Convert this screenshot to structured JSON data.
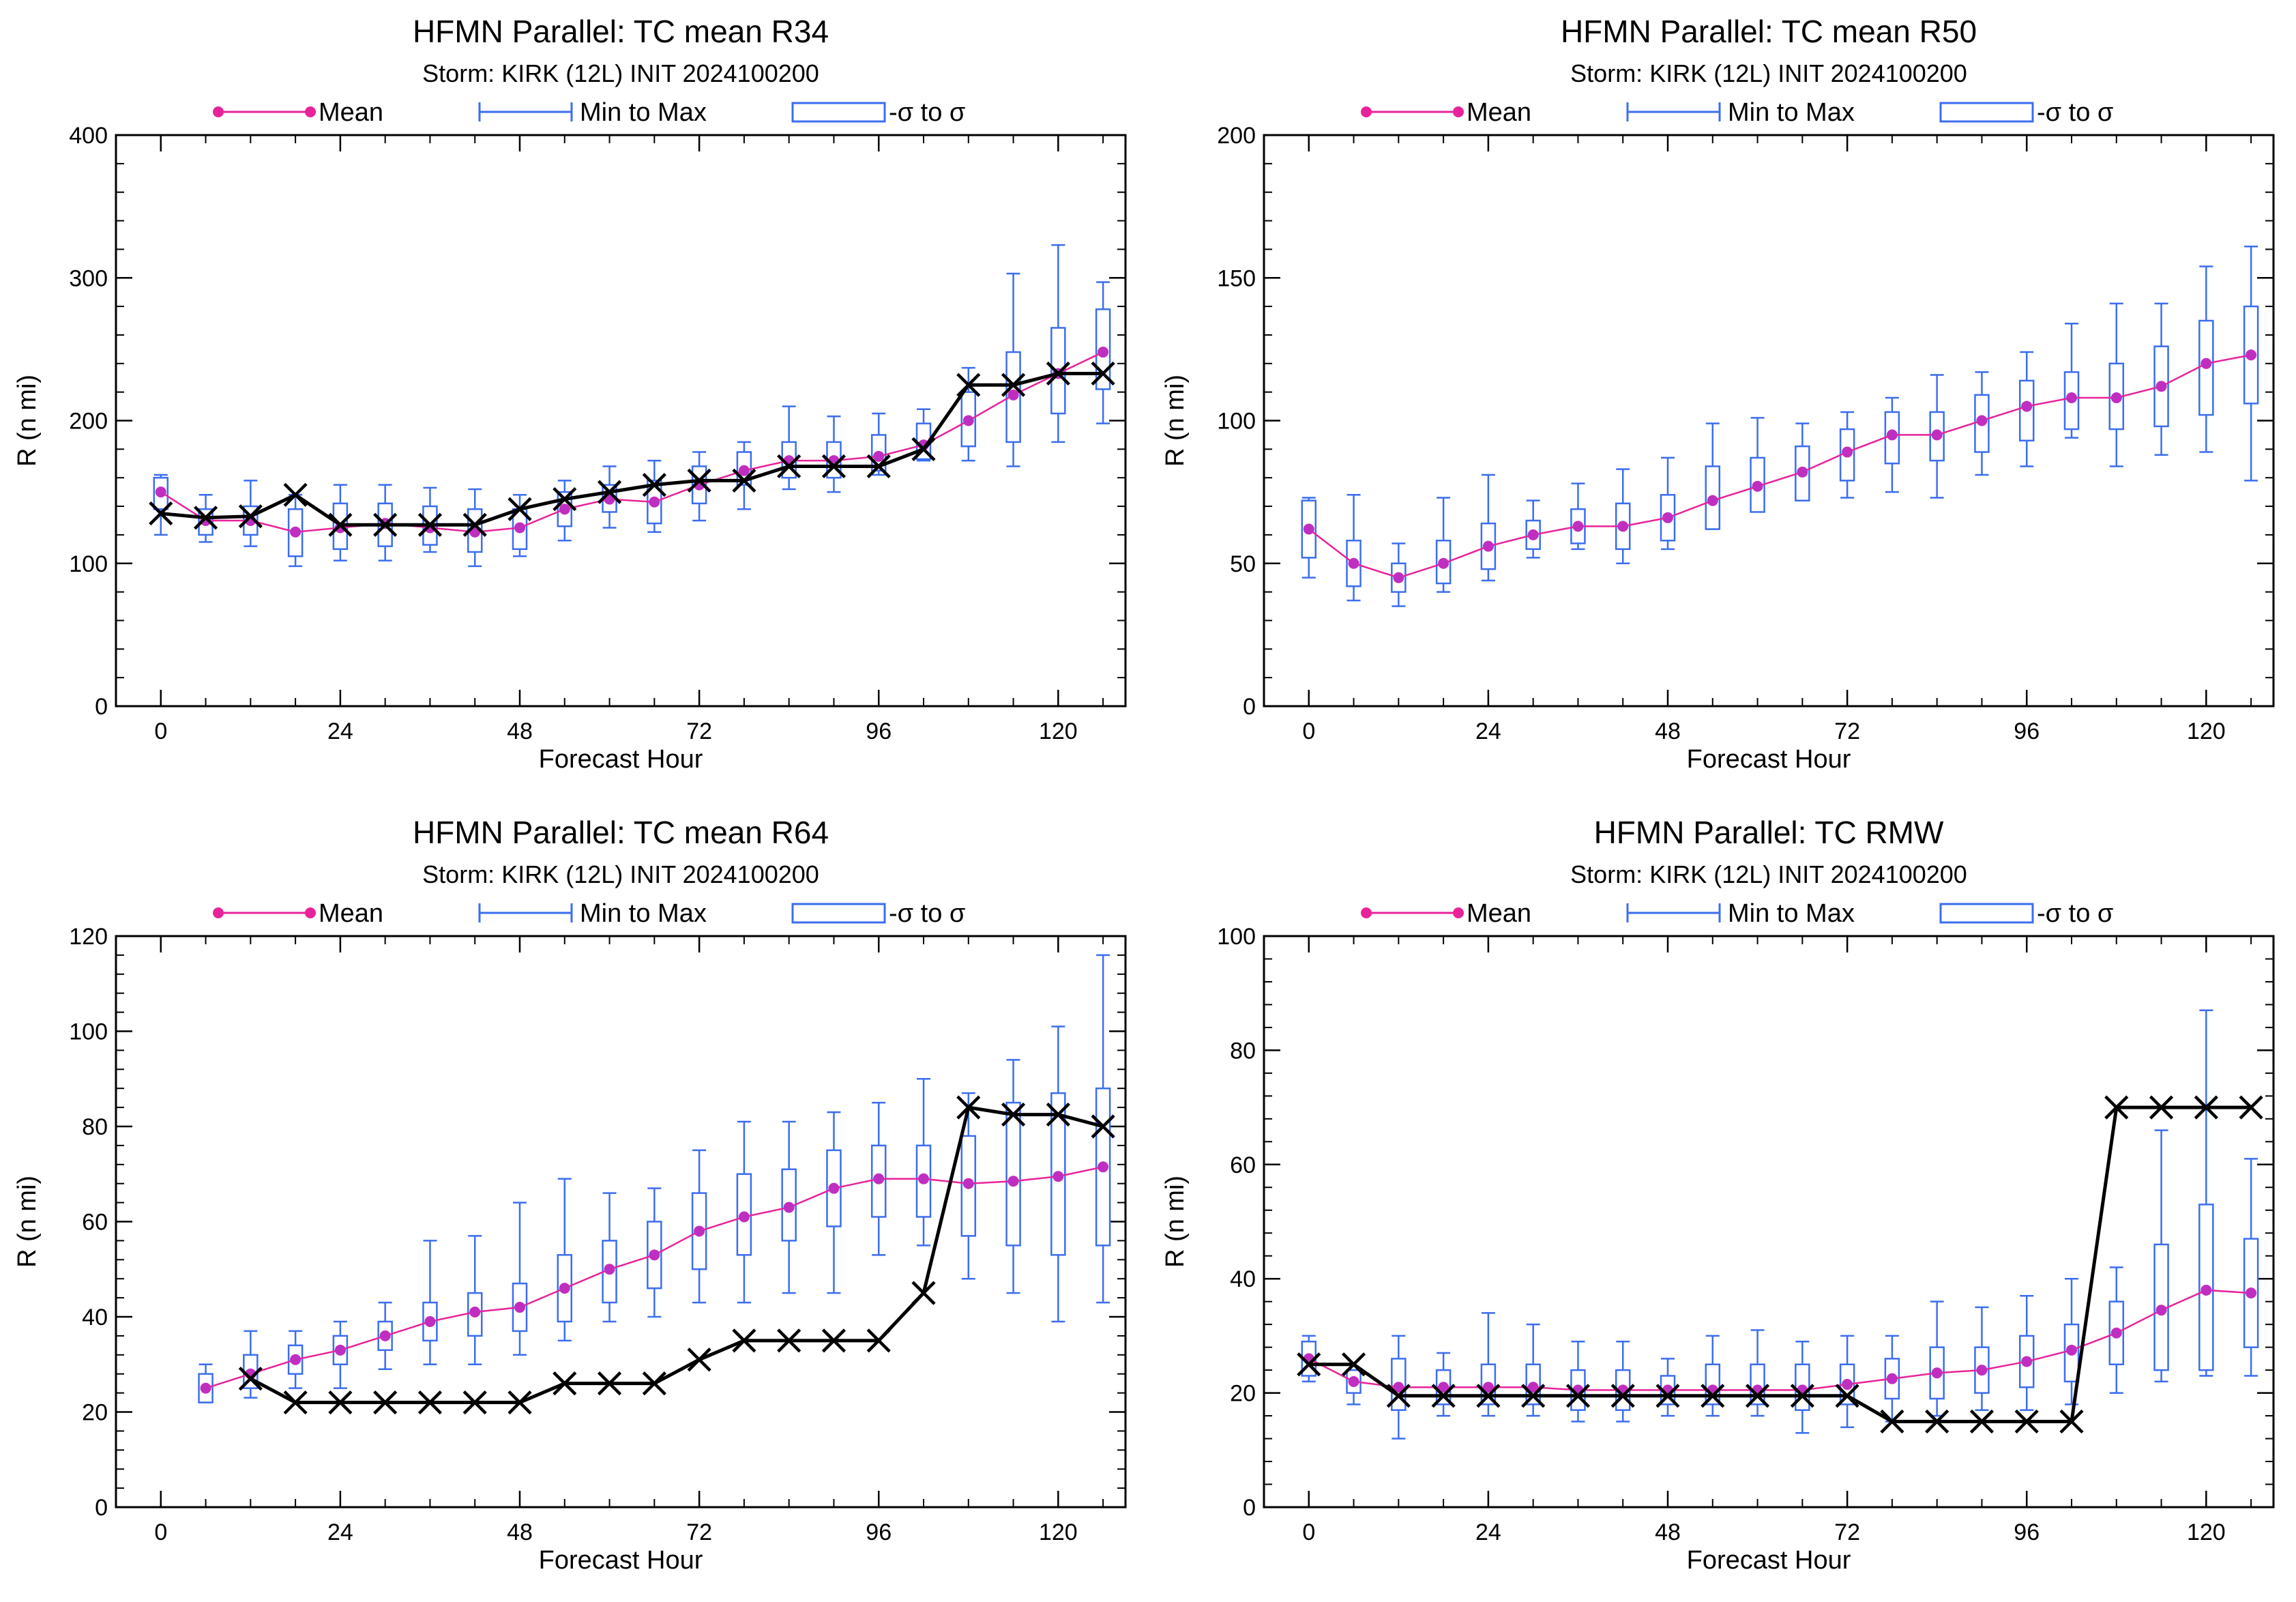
{
  "colors": {
    "mean": "#e8239a",
    "mean_marker": "#c02ec0",
    "range": "#3b6df0",
    "box": "#3b6df0",
    "obs": "#000000"
  },
  "legend": {
    "mean": "Mean",
    "minmax": "Min to Max",
    "sigma": "-σ to σ"
  },
  "chart_data": [
    {
      "type": "box",
      "title": "HFMN Parallel: TC mean R34",
      "subtitle": "Storm: KIRK (12L) INIT 2024100200",
      "xlabel": "Forecast Hour",
      "ylabel": "R (n mi)",
      "xlim": [
        -6,
        129
      ],
      "ylim": [
        0,
        400
      ],
      "xticks": [
        0,
        24,
        48,
        72,
        96,
        120
      ],
      "yticks": [
        0,
        100,
        200,
        300,
        400
      ],
      "x": [
        0,
        6,
        12,
        18,
        24,
        30,
        36,
        42,
        48,
        54,
        60,
        66,
        72,
        78,
        84,
        90,
        96,
        102,
        108,
        114,
        120,
        126
      ],
      "mean": [
        150,
        130,
        130,
        122,
        125,
        128,
        125,
        122,
        125,
        138,
        145,
        143,
        155,
        165,
        172,
        172,
        175,
        183,
        200,
        218,
        233,
        248
      ],
      "min": [
        120,
        115,
        112,
        98,
        102,
        102,
        108,
        98,
        105,
        116,
        125,
        122,
        130,
        138,
        152,
        150,
        162,
        172,
        172,
        168,
        185,
        198
      ],
      "max": [
        162,
        148,
        158,
        148,
        155,
        155,
        153,
        152,
        148,
        158,
        168,
        172,
        178,
        185,
        210,
        203,
        205,
        208,
        237,
        303,
        323,
        297
      ],
      "sd_low": [
        138,
        120,
        120,
        105,
        110,
        112,
        113,
        108,
        110,
        126,
        136,
        128,
        142,
        155,
        160,
        160,
        165,
        173,
        182,
        185,
        205,
        222
      ],
      "sd_high": [
        160,
        138,
        140,
        138,
        142,
        142,
        140,
        138,
        138,
        150,
        155,
        158,
        168,
        178,
        185,
        185,
        190,
        198,
        220,
        248,
        265,
        278
      ],
      "obs_x": [
        0,
        6,
        12,
        18,
        24,
        30,
        36,
        42,
        48,
        54,
        60,
        66,
        72,
        78,
        84,
        90,
        96,
        102,
        108,
        114,
        120,
        126
      ],
      "obs": [
        135,
        132,
        133,
        148,
        127,
        127,
        127,
        127,
        138,
        145,
        150,
        155,
        158,
        158,
        168,
        168,
        168,
        180,
        225,
        225,
        233,
        233
      ]
    },
    {
      "type": "box",
      "title": "HFMN Parallel: TC mean R50",
      "subtitle": "Storm: KIRK (12L) INIT 2024100200",
      "xlabel": "Forecast Hour",
      "ylabel": "R (n mi)",
      "xlim": [
        -6,
        129
      ],
      "ylim": [
        0,
        200
      ],
      "xticks": [
        0,
        24,
        48,
        72,
        96,
        120
      ],
      "yticks": [
        0,
        50,
        100,
        150,
        200
      ],
      "x": [
        0,
        6,
        12,
        18,
        24,
        30,
        36,
        42,
        48,
        54,
        60,
        66,
        72,
        78,
        84,
        90,
        96,
        102,
        108,
        114,
        120,
        126
      ],
      "mean": [
        62,
        50,
        45,
        50,
        56,
        60,
        63,
        63,
        66,
        72,
        77,
        82,
        89,
        95,
        95,
        100,
        105,
        108,
        108,
        112,
        120,
        123
      ],
      "min": [
        45,
        37,
        35,
        40,
        44,
        52,
        55,
        50,
        55,
        62,
        70,
        72,
        73,
        75,
        73,
        81,
        84,
        94,
        84,
        88,
        89,
        79
      ],
      "max": [
        73,
        74,
        57,
        73,
        81,
        72,
        78,
        83,
        87,
        99,
        101,
        99,
        103,
        108,
        116,
        117,
        124,
        134,
        141,
        141,
        154,
        161
      ],
      "sd_low": [
        52,
        42,
        40,
        43,
        48,
        55,
        57,
        55,
        58,
        62,
        68,
        72,
        79,
        85,
        86,
        89,
        93,
        97,
        97,
        98,
        102,
        106
      ],
      "sd_high": [
        72,
        58,
        50,
        58,
        64,
        65,
        69,
        71,
        74,
        84,
        87,
        91,
        97,
        103,
        103,
        109,
        114,
        117,
        120,
        126,
        135,
        140
      ]
    },
    {
      "type": "box",
      "title": "HFMN Parallel: TC mean R64",
      "subtitle": "Storm: KIRK (12L) INIT 2024100200",
      "xlabel": "Forecast Hour",
      "ylabel": "R (n mi)",
      "xlim": [
        -6,
        129
      ],
      "ylim": [
        0,
        120
      ],
      "xticks": [
        0,
        24,
        48,
        72,
        96,
        120
      ],
      "yticks": [
        0,
        20,
        40,
        60,
        80,
        100,
        120
      ],
      "x": [
        6,
        12,
        18,
        24,
        30,
        36,
        42,
        48,
        54,
        60,
        66,
        72,
        78,
        84,
        90,
        96,
        102,
        108,
        114,
        120,
        126
      ],
      "mean": [
        25,
        28,
        31,
        33,
        36,
        39,
        41,
        42,
        46,
        50,
        53,
        58,
        61,
        63,
        67,
        69,
        69,
        68,
        68.5,
        69.5,
        71.5
      ],
      "min": [
        22,
        23,
        25,
        25,
        29,
        30,
        30,
        32,
        35,
        39,
        40,
        43,
        43,
        45,
        45,
        53,
        55,
        48,
        45,
        39,
        43
      ],
      "max": [
        30,
        37,
        37,
        39,
        43,
        56,
        57,
        64,
        69,
        66,
        67,
        75,
        81,
        81,
        83,
        85,
        90,
        87,
        94,
        101,
        116
      ],
      "sd_low": [
        22,
        25,
        28,
        30,
        33,
        35,
        36,
        37,
        39,
        43,
        46,
        50,
        53,
        56,
        59,
        61,
        61,
        57,
        55,
        53,
        55
      ],
      "sd_high": [
        28,
        32,
        34,
        36,
        39,
        43,
        45,
        47,
        53,
        56,
        60,
        66,
        70,
        71,
        75,
        76,
        76,
        78,
        85,
        87,
        88
      ],
      "obs_x": [
        12,
        18,
        24,
        30,
        36,
        42,
        48,
        54,
        60,
        66,
        72,
        78,
        84,
        90,
        96,
        102,
        108,
        114,
        120,
        126
      ],
      "obs": [
        27,
        22,
        22,
        22,
        22,
        22,
        22,
        26,
        26,
        26,
        31,
        35,
        35,
        35,
        35,
        45,
        84,
        82.5,
        82.5,
        80
      ]
    },
    {
      "type": "box",
      "title": "HFMN Parallel: TC RMW",
      "subtitle": "Storm: KIRK (12L) INIT 2024100200",
      "xlabel": "Forecast Hour",
      "ylabel": "R (n mi)",
      "xlim": [
        -6,
        129
      ],
      "ylim": [
        0,
        100
      ],
      "xticks": [
        0,
        24,
        48,
        72,
        96,
        120
      ],
      "yticks": [
        0,
        20,
        40,
        60,
        80,
        100
      ],
      "x": [
        0,
        6,
        12,
        18,
        24,
        30,
        36,
        42,
        48,
        54,
        60,
        66,
        72,
        78,
        84,
        90,
        96,
        102,
        108,
        114,
        120,
        126
      ],
      "mean": [
        26,
        22,
        21,
        21,
        21,
        21,
        20.5,
        20.5,
        20.5,
        20.5,
        20.5,
        20.5,
        21.5,
        22.5,
        23.5,
        24,
        25.5,
        27.5,
        30.5,
        34.5,
        38,
        37.5
      ],
      "min": [
        22,
        18,
        12,
        16,
        16,
        16,
        15,
        15,
        16,
        16,
        16,
        13,
        14,
        15,
        16,
        17,
        17,
        18,
        20,
        22,
        23,
        23
      ],
      "max": [
        30,
        24,
        30,
        27,
        34,
        32,
        29,
        29,
        26,
        30,
        31,
        29,
        30,
        30,
        36,
        35,
        37,
        40,
        42,
        66,
        87,
        61
      ],
      "sd_low": [
        23,
        20,
        17,
        18,
        18,
        18,
        17,
        17,
        18,
        18,
        18,
        17,
        18,
        19,
        19,
        20,
        21,
        22,
        25,
        24,
        24,
        28
      ],
      "sd_high": [
        29,
        24,
        26,
        24,
        25,
        25,
        24,
        24,
        23,
        25,
        25,
        25,
        25,
        26,
        28,
        28,
        30,
        32,
        36,
        46,
        53,
        47
      ],
      "obs_x": [
        0,
        6,
        12,
        18,
        24,
        30,
        36,
        42,
        48,
        54,
        60,
        66,
        72,
        78,
        84,
        90,
        96,
        102,
        108,
        114,
        120,
        126
      ],
      "obs": [
        25,
        25,
        19.5,
        19.5,
        19.5,
        19.5,
        19.5,
        19.5,
        19.5,
        19.5,
        19.5,
        19.5,
        19.5,
        15,
        15,
        15,
        15,
        15,
        70,
        70,
        70,
        70
      ]
    }
  ]
}
